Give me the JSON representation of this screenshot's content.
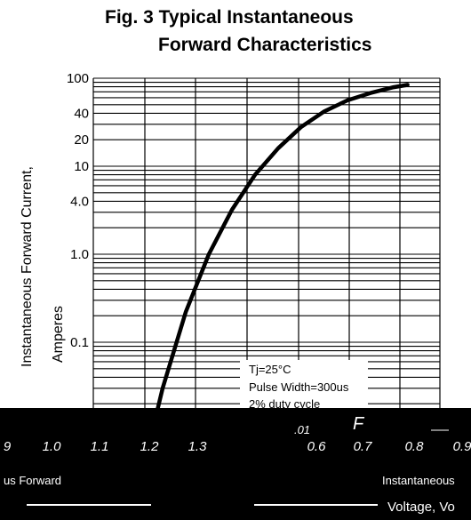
{
  "chart_data": {
    "type": "line",
    "title_line1": "Fig. 3  Typical Instantaneous",
    "title_line2": "Forward Characteristics",
    "ylabel_line1": "Instantaneous Forward Current,",
    "ylabel_line2": "Amperes",
    "yscale": "log",
    "ylim": [
      0.01,
      100
    ],
    "ytick_labels": [
      {
        "value": 100,
        "label": "100"
      },
      {
        "value": 40,
        "label": "40"
      },
      {
        "value": 20,
        "label": "20"
      },
      {
        "value": 10,
        "label": "10"
      },
      {
        "value": 4,
        "label": "4.0"
      },
      {
        "value": 1,
        "label": "1.0"
      },
      {
        "value": 0.1,
        "label": "0.1"
      }
    ],
    "xtick_labels": [
      "9",
      "1.0",
      "1.1",
      "1.2",
      "1.3",
      ".01",
      "0.6",
      "0.7",
      "0.8",
      "0.9"
    ],
    "xlabel_fragments": [
      "us Forward",
      "Instantaneous",
      "Voltage, Vo"
    ],
    "series": [
      {
        "color": "#000000",
        "x": [
          1.178,
          1.2,
          1.25,
          1.3,
          1.35,
          1.4,
          1.45,
          1.5,
          1.55,
          1.6,
          1.65,
          1.7,
          1.73
        ],
        "y": [
          0.01,
          0.03,
          0.22,
          1.0,
          3.2,
          8.0,
          16.0,
          28.0,
          42.0,
          56.0,
          68.0,
          79.0,
          84.0
        ]
      }
    ],
    "legend": {
      "lines": [
        "Tj=25°C",
        "Pulse Width=300us",
        "2% duty cycle"
      ],
      "position": "lower-right"
    },
    "stray_marks": [
      "F"
    ],
    "grid": true
  }
}
